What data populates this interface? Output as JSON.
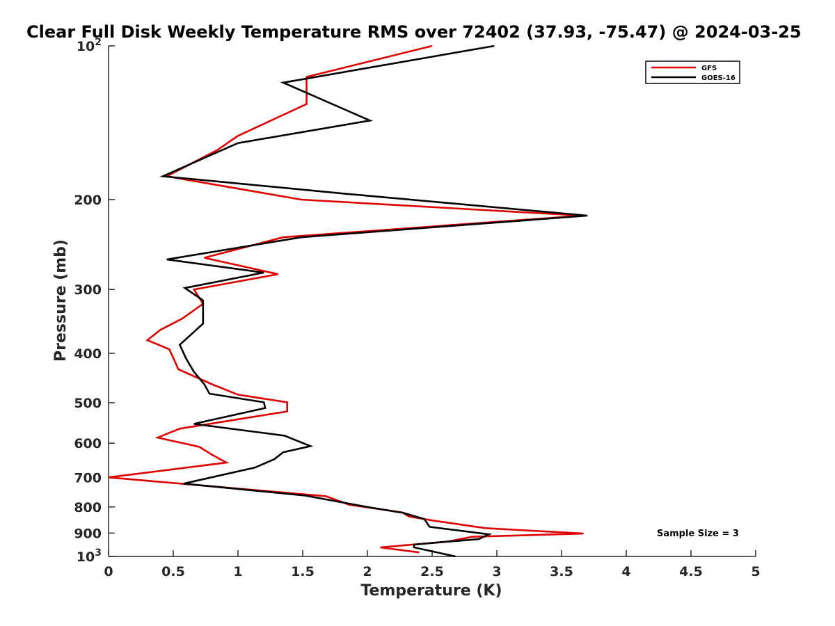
{
  "chart_data": {
    "type": "line",
    "title": "Clear Full Disk Weekly Temperature RMS over 72402 (37.93, -75.47) @ 2024-03-25",
    "xlabel": "Temperature (K)",
    "ylabel": "Pressure (mb)",
    "xlim": [
      0,
      5
    ],
    "ylim": [
      100,
      1000
    ],
    "yscale": "log",
    "y_reversed": true,
    "xticks": [
      0,
      0.5,
      1,
      1.5,
      2,
      2.5,
      3,
      3.5,
      4,
      4.5,
      5
    ],
    "xtick_labels": [
      "0",
      "0.5",
      "1",
      "1.5",
      "2",
      "2.5",
      "3",
      "3.5",
      "4",
      "4.5",
      "5"
    ],
    "yticks": [
      {
        "value": 100,
        "base": "10",
        "exp": "2"
      },
      {
        "value": 200,
        "label": "200"
      },
      {
        "value": 300,
        "label": "300"
      },
      {
        "value": 400,
        "label": "400"
      },
      {
        "value": 500,
        "label": "500"
      },
      {
        "value": 600,
        "label": "600"
      },
      {
        "value": 700,
        "label": "700"
      },
      {
        "value": 800,
        "label": "800"
      },
      {
        "value": 900,
        "label": "900"
      },
      {
        "value": 1000,
        "base": "10",
        "exp": "3"
      }
    ],
    "legend_position": "top-right",
    "annotation": "Sample Size = 3",
    "series": [
      {
        "name": "GFS",
        "color": "#e00000",
        "points": [
          [
            2.5,
            100
          ],
          [
            1.53,
            115
          ],
          [
            1.53,
            130
          ],
          [
            1.0,
            150
          ],
          [
            0.84,
            160
          ],
          [
            0.45,
            180
          ],
          [
            1.49,
            200
          ],
          [
            3.66,
            215
          ],
          [
            1.35,
            237
          ],
          [
            0.74,
            260
          ],
          [
            1.31,
            280
          ],
          [
            0.66,
            300
          ],
          [
            0.73,
            320
          ],
          [
            0.57,
            342
          ],
          [
            0.4,
            360
          ],
          [
            0.3,
            377
          ],
          [
            0.47,
            393
          ],
          [
            0.54,
            430
          ],
          [
            0.8,
            460
          ],
          [
            1.0,
            482
          ],
          [
            1.38,
            499
          ],
          [
            1.38,
            520
          ],
          [
            0.55,
            562
          ],
          [
            0.38,
            585
          ],
          [
            0.7,
            610
          ],
          [
            0.8,
            632
          ],
          [
            0.91,
            655
          ],
          [
            0.0,
            700
          ],
          [
            1.68,
            762
          ],
          [
            1.86,
            792
          ],
          [
            2.27,
            820
          ],
          [
            2.32,
            835
          ],
          [
            2.5,
            850
          ],
          [
            2.91,
            880
          ],
          [
            3.67,
            902
          ],
          [
            2.81,
            915
          ],
          [
            2.62,
            935
          ],
          [
            2.1,
            960
          ],
          [
            2.4,
            982
          ]
        ]
      },
      {
        "name": "GOES-16",
        "color": "#000000",
        "points": [
          [
            2.98,
            100
          ],
          [
            1.35,
            118
          ],
          [
            2.02,
            140
          ],
          [
            1.0,
            155
          ],
          [
            0.42,
            180
          ],
          [
            1.85,
            195
          ],
          [
            3.7,
            215
          ],
          [
            1.49,
            237
          ],
          [
            0.45,
            262
          ],
          [
            1.2,
            278
          ],
          [
            0.59,
            298
          ],
          [
            0.73,
            315
          ],
          [
            0.73,
            350
          ],
          [
            0.55,
            385
          ],
          [
            0.6,
            410
          ],
          [
            0.66,
            435
          ],
          [
            0.74,
            460
          ],
          [
            0.78,
            480
          ],
          [
            1.2,
            499
          ],
          [
            1.21,
            512
          ],
          [
            0.66,
            550
          ],
          [
            1.36,
            580
          ],
          [
            1.56,
            608
          ],
          [
            1.35,
            625
          ],
          [
            1.28,
            645
          ],
          [
            1.13,
            670
          ],
          [
            0.58,
            720
          ],
          [
            1.52,
            760
          ],
          [
            2.0,
            800
          ],
          [
            2.28,
            822
          ],
          [
            2.44,
            845
          ],
          [
            2.48,
            875
          ],
          [
            2.94,
            905
          ],
          [
            2.86,
            925
          ],
          [
            2.52,
            940
          ],
          [
            2.36,
            948
          ],
          [
            2.36,
            960
          ],
          [
            2.68,
            1000
          ]
        ]
      }
    ]
  }
}
